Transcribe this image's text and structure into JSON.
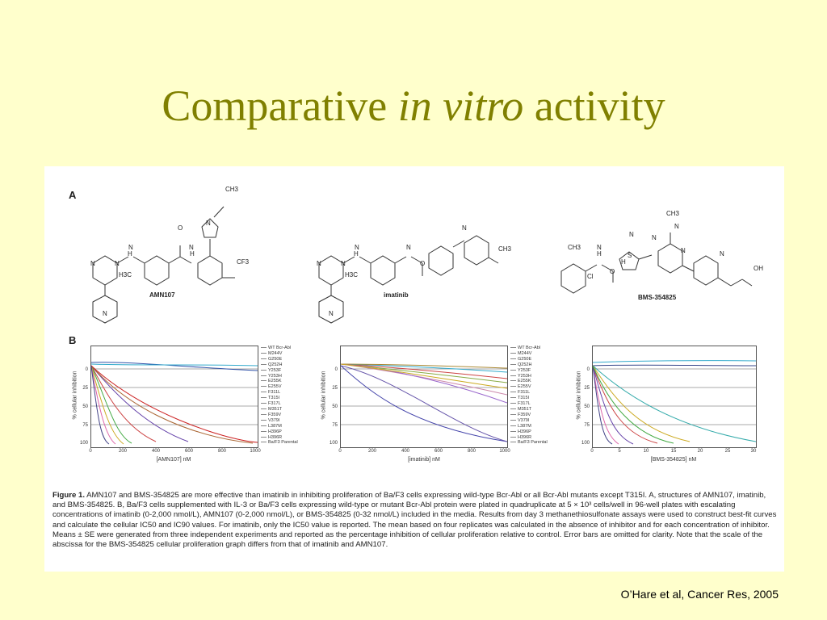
{
  "title": {
    "part1": "Comparative",
    "italic": "in vitro",
    "part2": "activity"
  },
  "citation": "O’Hare et al, Cancer Res, 2005",
  "figure": {
    "panel_a": "A",
    "panel_b": "B",
    "compounds": [
      "AMN107",
      "imatinib",
      "BMS-354825"
    ],
    "atom_labels": {
      "amn": [
        "N",
        "N",
        "H",
        "N",
        "N",
        "H",
        "N",
        "O",
        "N",
        "CH3",
        "CF3",
        "H3C"
      ],
      "ima": [
        "N",
        "N",
        "N",
        "H",
        "N",
        "N",
        "N",
        "O",
        "CH3",
        "H3C"
      ],
      "bms": [
        "CH3",
        "N",
        "H",
        "N",
        "S",
        "N",
        "N",
        "N",
        "O",
        "Cl",
        "CH3",
        "OH",
        "H",
        "N"
      ]
    },
    "ylabel": "% cellular inhibition",
    "yticks": [
      "0",
      "25",
      "50",
      "75",
      "100"
    ],
    "plots": [
      {
        "xlabel": "[AMN107] nM",
        "xticks": [
          "0",
          "200",
          "400",
          "600",
          "800",
          "1000"
        ]
      },
      {
        "xlabel": "[imatinib] nM",
        "xticks": [
          "0",
          "200",
          "400",
          "600",
          "800",
          "1000"
        ]
      },
      {
        "xlabel": "[BMS-354825] nM",
        "xticks": [
          "0",
          "5",
          "10",
          "15",
          "20",
          "25",
          "30"
        ]
      }
    ],
    "legend": [
      "WT Bcr-Abl",
      "M244V",
      "G250E",
      "Q252H",
      "Y253F",
      "Y253H",
      "E255K",
      "E255V",
      "F311L",
      "T315I",
      "F317L",
      "M351T",
      "F359V",
      "V379I",
      "L387M",
      "H396P",
      "H396R",
      "Ba/F3 Parental"
    ],
    "caption": {
      "label": "Figure 1.",
      "text": "AMN107 and BMS-354825 are more effective than imatinib in inhibiting proliferation of Ba/F3 cells expressing wild-type Bcr-Abl or all Bcr-Abl mutants except T315I. A, structures of AMN107, imatinib, and BMS-354825. B, Ba/F3 cells supplemented with IL-3 or Ba/F3 cells expressing wild-type or mutant Bcr-Abl protein were plated in quadruplicate at 5 × 10³ cells/well in 96-well plates with escalating concentrations of imatinib (0-2,000 nmol/L), AMN107 (0-2,000 nmol/L), or BMS-354825 (0-32 nmol/L) included in the media. Results from day 3 methanethiosulfonate assays were used to construct best-fit curves and calculate the cellular IC50 and IC90 values. For imatinib, only the IC50 value is reported. The mean based on four replicates was calculated in the absence of inhibitor and for each concentration of inhibitor. Means ± SE were generated from three independent experiments and reported as the percentage inhibition of cellular proliferation relative to control. Error bars are omitted for clarity. Note that the scale of the abscissa for the BMS-354825 cellular proliferation graph differs from that of imatinib and AMN107."
    }
  }
}
